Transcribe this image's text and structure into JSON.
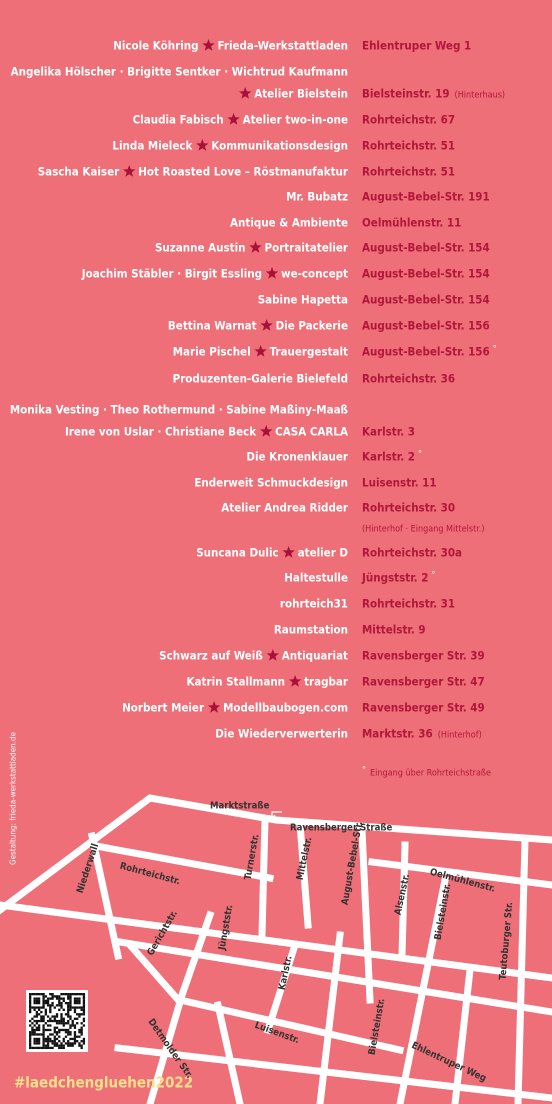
{
  "entries": [
    {
      "person": "Nicole Köhring",
      "shop": "Frieda-Werkstattladen",
      "address": "Ehlentruper Weg 1"
    },
    {
      "lead": "Angelika Hölscher · Brigitte Sentker · Wichtrud Kaufmann",
      "star": true,
      "shop": "Atelier Bielstein",
      "address": "Bielsteinstr. 19",
      "note": "(Hinterhaus)"
    },
    {
      "person": "Claudia Fabisch",
      "shop": "Atelier two-in-one",
      "address": "Rohrteichstr. 67"
    },
    {
      "person": "Linda Mieleck",
      "shop": "Kommunikationsdesign",
      "address": "Rohrteichstr. 51"
    },
    {
      "person": "Sascha Kaiser",
      "shop": "Hot Roasted Love – Röstmanufaktur",
      "address": "Rohrteichstr. 51"
    },
    {
      "shop": "Mr. Bubatz",
      "address": "August-Bebel-Str. 191"
    },
    {
      "shop": "Antique & Ambiente",
      "address": "Oelmühlenstr. 11"
    },
    {
      "person": "Suzanne Austin",
      "shop": "Portraitatelier",
      "address": "August-Bebel-Str. 154"
    },
    {
      "person": "Joachim Stäbler · Birgit Essling",
      "shop": "we-concept",
      "address": "August-Bebel-Str. 154"
    },
    {
      "shop": "Sabine Hapetta",
      "address": "August-Bebel-Str. 154"
    },
    {
      "person": "Bettina Warnat",
      "shop": "Die Packerie",
      "address": "August-Bebel-Str. 156"
    },
    {
      "person": "Marie Pischel",
      "shop": "Trauergestalt",
      "address": "August-Bebel-Str. 156",
      "mark": "°"
    },
    {
      "shop": "Produzenten-Galerie Bielefeld",
      "address": "Rohrteichstr. 36"
    },
    {
      "lead": "Monika Vesting · Theo Rothermund · Sabine Maßiny-Maaß",
      "person": "Irene von Uslar · Christiane Beck",
      "shop": "CASA CARLA",
      "address": "Karlstr. 3"
    },
    {
      "shop": "Die Kronenklauer",
      "address": "Karlstr. 2",
      "mark": "°"
    },
    {
      "shop": "Enderweit Schmuckdesign",
      "address": "Luisenstr. 11"
    },
    {
      "shop": "Atelier Andrea Ridder",
      "address": "Rohrteichstr. 30",
      "note_below": "(Hinterhof · Eingang Mittelstr.)"
    },
    {
      "person": "Suncana Dulic",
      "shop": "atelier D",
      "address": "Rohrteichstr. 30a"
    },
    {
      "shop": "Haltestulle",
      "address": "Jüngststr. 2",
      "mark": "°"
    },
    {
      "shop": "rohrteich31",
      "address": "Rohrteichstr. 31"
    },
    {
      "shop": "Raumstation",
      "address": "Mittelstr. 9"
    },
    {
      "person": "Schwarz auf Weiß",
      "shop": "Antiquariat",
      "address": "Ravensberger Str. 39"
    },
    {
      "person": "Katrin Stallmann",
      "shop": "tragbar",
      "address": "Ravensberger Str. 47"
    },
    {
      "person": "Norbert Meier",
      "shop": "Modellbaubogen.com",
      "address": "Ravensberger Str. 49"
    },
    {
      "shop": "Die Wiederverwerterin",
      "address": "Marktstr. 36",
      "note": "(Hinterhof)"
    }
  ],
  "footnote": {
    "mark": "°",
    "text": "Eingang über Rohrteichstraße"
  },
  "credit": "Gestaltung: frieda-werkstattladen.de",
  "hashtag": "#laedchengluehen2022",
  "map": {
    "streets": [
      "Marktstraße",
      "Ravensberger Straße",
      "Niederwall",
      "Rohrteichstr.",
      "Turnerstr.",
      "Mittelstr.",
      "August-Bebel-Str.",
      "Oelmühlenstr.",
      "Alsenstr.",
      "Bielsteinstr.",
      "Teutoburger Str.",
      "Gerichtstr.",
      "Jüngststr.",
      "Karlstr.",
      "Detmolder Str.",
      "Luisenstr.",
      "Bielsteinstr.",
      "Ehlentruper Weg"
    ]
  }
}
